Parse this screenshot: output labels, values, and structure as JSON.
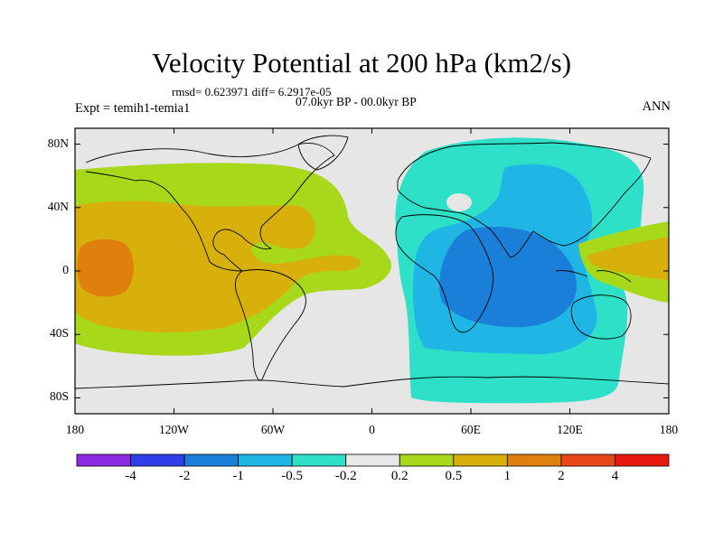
{
  "title": "Velocity Potential at 200 hPa (km2/s)",
  "stats": "rmsd= 0.623971 diff= 6.2917e-05",
  "period": "07.0kyr BP - 00.0kyr BP",
  "experiment": "Expt = temih1-temia1",
  "season": "ANN",
  "map": {
    "projection": "cylindrical equidistant",
    "lon_range": [
      -180,
      180
    ],
    "lat_range": [
      -90,
      90
    ],
    "x_ticks": [
      {
        "lon": -180,
        "label": "180"
      },
      {
        "lon": -120,
        "label": "120W"
      },
      {
        "lon": -60,
        "label": "60W"
      },
      {
        "lon": 0,
        "label": "0"
      },
      {
        "lon": 60,
        "label": "60E"
      },
      {
        "lon": 120,
        "label": "120E"
      },
      {
        "lon": 180,
        "label": "180"
      }
    ],
    "y_ticks": [
      {
        "lat": 80,
        "label": "80N"
      },
      {
        "lat": 40,
        "label": "40N"
      },
      {
        "lat": 0,
        "label": "0"
      },
      {
        "lat": -40,
        "label": "40S"
      },
      {
        "lat": -80,
        "label": "80S"
      }
    ],
    "background_color": "#e6e6e6",
    "coastline_color": "#000000"
  },
  "colorbar": {
    "colors": [
      "#8a2be2",
      "#2f3ee6",
      "#1a7fd9",
      "#1fb6e6",
      "#2fe0c8",
      "#e8e8e8",
      "#a8d81a",
      "#d8b00c",
      "#e0800c",
      "#e84818",
      "#e81a10"
    ],
    "labels": [
      "-4",
      "-2",
      "-1",
      "-0.5",
      "-0.2",
      "0.2",
      "0.5",
      "1",
      "2",
      "4"
    ]
  }
}
